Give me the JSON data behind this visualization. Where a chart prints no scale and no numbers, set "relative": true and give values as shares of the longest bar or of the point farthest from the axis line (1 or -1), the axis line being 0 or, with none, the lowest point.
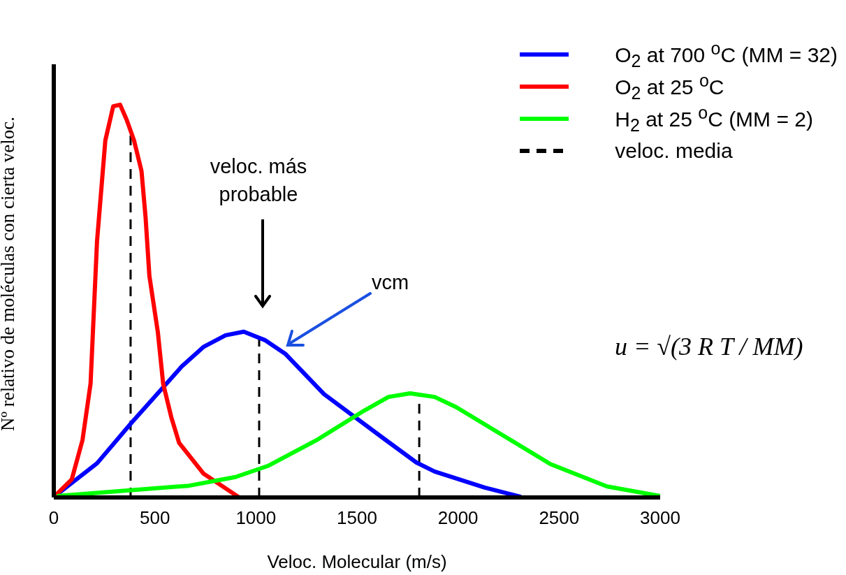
{
  "chart_data": {
    "type": "line",
    "relative": true,
    "xlabel": "Veloc. Molecular (m/s)",
    "ylabel": "Nº relativo de moléculas con cierta veloc.",
    "xlim": [
      0,
      3000
    ],
    "xticks": [
      0,
      500,
      1000,
      1500,
      2000,
      2500,
      3000
    ],
    "legend": "top right",
    "marker": "none",
    "line_style": "solid",
    "series": [
      {
        "name": "O$_{2}$ at 700 $^{o}$C (MM = 32)",
        "color": "#0000ff",
        "x": [
          24,
          214,
          384,
          632,
          740,
          850,
          940,
          1047,
          1147,
          1337,
          1635,
          1794,
          1884,
          2132,
          2308
        ],
        "values": [
          0.011,
          0.087,
          0.19,
          0.333,
          0.383,
          0.413,
          0.422,
          0.4,
          0.365,
          0.263,
          0.149,
          0.089,
          0.066,
          0.025,
          0.002
        ]
      },
      {
        "name": "O$_{2}$ at 25 $^{o}$C",
        "color": "#ff0000",
        "x": [
          16,
          89,
          142,
          182,
          214,
          255,
          294,
          328,
          361,
          397,
          434,
          454,
          473,
          515,
          541,
          581,
          620,
          740,
          912
        ],
        "values": [
          0.009,
          0.046,
          0.146,
          0.29,
          0.653,
          0.909,
          0.996,
          1,
          0.961,
          0.909,
          0.831,
          0.714,
          0.564,
          0.42,
          0.29,
          0.205,
          0.139,
          0.061,
          0.002
        ]
      },
      {
        "name": "H$_{2}$ at 25 $^{o}$C (MM = 2)",
        "color": "#00ff00",
        "x": [
          24,
          670,
          899,
          1058,
          1307,
          1535,
          1656,
          1763,
          1884,
          1991,
          2457,
          2737,
          2996
        ],
        "values": [
          0.004,
          0.03,
          0.052,
          0.08,
          0.148,
          0.221,
          0.256,
          0.265,
          0.256,
          0.23,
          0.085,
          0.028,
          0.004
        ]
      }
    ],
    "ref_lines": [
      {
        "axis": "x",
        "value": 1016,
        "label": "veloc. media",
        "color": "#000000",
        "line_style": "dashed"
      },
      {
        "axis": "x",
        "value": 380,
        "label": null,
        "color": "#000000",
        "line_style": "dashed"
      },
      {
        "axis": "x",
        "value": 1808,
        "label": null,
        "color": "#000000",
        "line_style": "dashed"
      }
    ],
    "annotations": [
      "veloc. más probable",
      "vcm",
      "u = √(3 R T / MM)"
    ]
  }
}
